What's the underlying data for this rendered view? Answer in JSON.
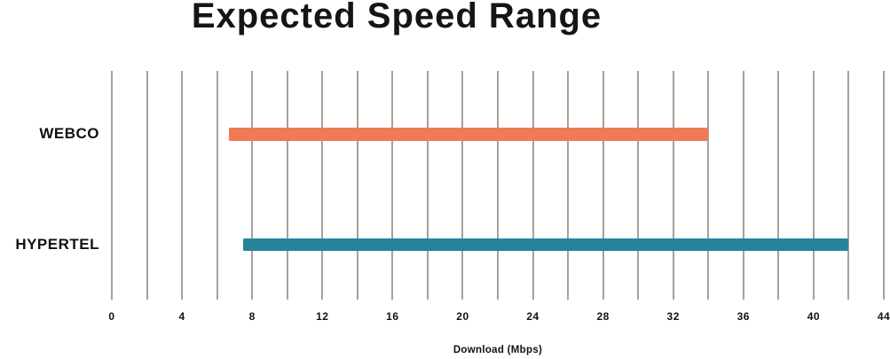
{
  "chart_data": {
    "type": "bar",
    "subtype": "range",
    "orientation": "horizontal",
    "title": "Expected Speed Range",
    "xlabel": "Download (Mbps)",
    "categories": [
      "WEBCO",
      "HYPERTEL"
    ],
    "series": [
      {
        "name": "WEBCO",
        "range": [
          6.7,
          34
        ],
        "color": "#f07a55"
      },
      {
        "name": "HYPERTEL",
        "range": [
          7.5,
          42
        ],
        "color": "#27839c"
      }
    ],
    "xlim": [
      0,
      44
    ],
    "x_tick_labels": [
      "0",
      "4",
      "8",
      "12",
      "16",
      "20",
      "24",
      "28",
      "32",
      "36",
      "40",
      "44"
    ],
    "x_tick_values": [
      0,
      4,
      8,
      12,
      16,
      20,
      24,
      28,
      32,
      36,
      40,
      44
    ],
    "gridline_interval": 2,
    "grid": true,
    "legend": false,
    "colors": {
      "gridline": "#a5a19b",
      "text": "#121212",
      "background": "#ffffff"
    }
  }
}
